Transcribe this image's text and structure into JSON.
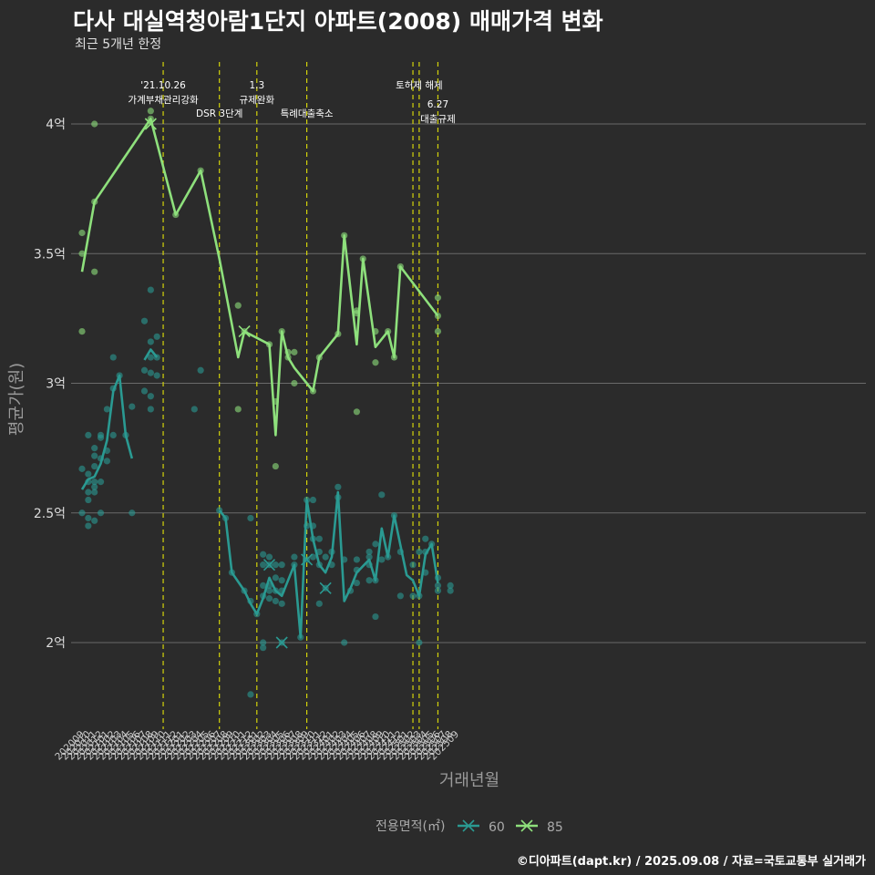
{
  "title": "다사 대실역청아람1단지 아파트(2008) 매매가격 변화",
  "subtitle": "최근 5개년 한정",
  "credit": "©디아파트(dapt.kr) / 2025.09.08 / 자료=국토교통부 실거래가",
  "colors": {
    "s60": "#2a9a92",
    "s85": "#8ee07c",
    "event": "#d4d40a",
    "grid": "#6a6a6a"
  },
  "chart_data": {
    "type": "line",
    "xlabel": "거래년월",
    "ylabel": "평균가(원)",
    "ylim": [
      1.68,
      4.22
    ],
    "yticks": [
      {
        "value": 2,
        "label": "2억"
      },
      {
        "value": 2.5,
        "label": "2.5억"
      },
      {
        "value": 3,
        "label": "3억"
      },
      {
        "value": 3.5,
        "label": "3.5억"
      },
      {
        "value": 4,
        "label": "4억"
      }
    ],
    "months": [
      "202009",
      "202010",
      "202011",
      "202012",
      "202101",
      "202102",
      "202103",
      "202104",
      "202105",
      "202106",
      "202107",
      "202108",
      "202109",
      "202110",
      "202111",
      "202112",
      "202201",
      "202202",
      "202203",
      "202204",
      "202205",
      "202206",
      "202207",
      "202208",
      "202209",
      "202210",
      "202211",
      "202212",
      "202301",
      "202302",
      "202303",
      "202304",
      "202305",
      "202306",
      "202307",
      "202308",
      "202309",
      "202310",
      "202311",
      "202312",
      "202401",
      "202402",
      "202403",
      "202404",
      "202405",
      "202406",
      "202407",
      "202408",
      "202409",
      "202410",
      "202411",
      "202412",
      "202501",
      "202502",
      "202503",
      "202504",
      "202505",
      "202506",
      "202507",
      "202508",
      "202509"
    ],
    "legend_title": "전용면적(㎡)",
    "series": [
      {
        "name": "60",
        "line": [
          [
            "202009",
            2.59
          ],
          [
            "202010",
            2.63
          ],
          [
            "202011",
            2.64
          ],
          [
            "202012",
            2.69
          ],
          [
            "202101",
            2.78
          ],
          [
            "202102",
            2.97
          ],
          [
            "202103",
            3.03
          ],
          [
            "202104",
            2.8
          ],
          [
            "202105",
            2.71
          ],
          null,
          [
            "202107",
            3.09
          ],
          [
            "202108",
            3.13
          ],
          [
            "202109",
            3.1
          ],
          null,
          [
            "202207",
            2.51
          ],
          [
            "202208",
            2.48
          ],
          [
            "202209",
            2.27
          ],
          [
            "202211",
            2.2
          ],
          [
            "202212",
            2.15
          ],
          [
            "202301",
            2.11
          ],
          [
            "202302",
            2.17
          ],
          [
            "202303",
            2.25
          ],
          [
            "202304",
            2.2
          ],
          [
            "202305",
            2.18
          ],
          [
            "202307",
            2.3
          ],
          [
            "202308",
            2.02
          ],
          [
            "202309",
            2.55
          ],
          [
            "202310",
            2.4
          ],
          [
            "202311",
            2.3
          ],
          [
            "202312",
            2.27
          ],
          [
            "202401",
            2.33
          ],
          [
            "202402",
            2.58
          ],
          [
            "202403",
            2.16
          ],
          [
            "202404",
            2.21
          ],
          [
            "202405",
            2.27
          ],
          [
            "202407",
            2.32
          ],
          [
            "202408",
            2.24
          ],
          [
            "202409",
            2.44
          ],
          [
            "202410",
            2.33
          ],
          [
            "202411",
            2.49
          ],
          [
            "202501",
            2.26
          ],
          [
            "202502",
            2.24
          ],
          [
            "202503",
            2.18
          ],
          [
            "202504",
            2.34
          ],
          [
            "202505",
            2.38
          ],
          [
            "202506",
            2.23
          ]
        ],
        "points": [
          [
            "202009",
            2.67
          ],
          [
            "202009",
            2.5
          ],
          [
            "202010",
            2.8
          ],
          [
            "202010",
            2.65
          ],
          [
            "202010",
            2.62
          ],
          [
            "202010",
            2.58
          ],
          [
            "202010",
            2.55
          ],
          [
            "202010",
            2.48
          ],
          [
            "202010",
            2.45
          ],
          [
            "202011",
            2.75
          ],
          [
            "202011",
            2.72
          ],
          [
            "202011",
            2.68
          ],
          [
            "202011",
            2.62
          ],
          [
            "202011",
            2.6
          ],
          [
            "202011",
            2.58
          ],
          [
            "202011",
            2.47
          ],
          [
            "202012",
            2.8
          ],
          [
            "202012",
            2.79
          ],
          [
            "202012",
            2.71
          ],
          [
            "202012",
            2.62
          ],
          [
            "202012",
            2.5
          ],
          [
            "202101",
            2.9
          ],
          [
            "202101",
            2.74
          ],
          [
            "202101",
            2.7
          ],
          [
            "202102",
            3.1
          ],
          [
            "202102",
            2.98
          ],
          [
            "202102",
            2.8
          ],
          [
            "202103",
            3.03
          ],
          [
            "202104",
            2.8
          ],
          [
            "202105",
            2.91
          ],
          [
            "202105",
            2.5
          ],
          [
            "202107",
            3.24
          ],
          [
            "202107",
            3.05
          ],
          [
            "202107",
            2.97
          ],
          [
            "202108",
            3.36
          ],
          [
            "202108",
            3.16
          ],
          [
            "202108",
            3.1
          ],
          [
            "202108",
            3.04
          ],
          [
            "202108",
            2.95
          ],
          [
            "202108",
            2.9
          ],
          [
            "202109",
            3.18
          ],
          [
            "202109",
            3.1
          ],
          [
            "202109",
            3.03
          ],
          [
            "202203",
            2.9
          ],
          [
            "202204",
            3.05
          ],
          [
            "202207",
            2.51
          ],
          [
            "202208",
            2.48
          ],
          [
            "202209",
            2.27
          ],
          [
            "202211",
            2.2
          ],
          [
            "202212",
            2.48
          ],
          [
            "202212",
            2.16
          ],
          [
            "202212",
            1.8
          ],
          [
            "202301",
            2.11
          ],
          [
            "202302",
            2.34
          ],
          [
            "202302",
            2.3
          ],
          [
            "202302",
            2.22
          ],
          [
            "202302",
            2.18
          ],
          [
            "202302",
            2.0
          ],
          [
            "202302",
            1.98
          ],
          [
            "202303",
            2.33
          ],
          [
            "202303",
            2.3
          ],
          [
            "202303",
            2.22
          ],
          [
            "202303",
            2.2
          ],
          [
            "202303",
            2.17
          ],
          [
            "202304",
            2.3
          ],
          [
            "202304",
            2.25
          ],
          [
            "202304",
            2.2
          ],
          [
            "202304",
            2.16
          ],
          [
            "202305",
            2.3
          ],
          [
            "202305",
            2.24
          ],
          [
            "202305",
            2.2
          ],
          [
            "202305",
            2.15
          ],
          [
            "202305",
            2.0
          ],
          [
            "202307",
            2.33
          ],
          [
            "202307",
            2.3
          ],
          [
            "202308",
            2.02
          ],
          [
            "202309",
            2.55
          ],
          [
            "202309",
            2.45
          ],
          [
            "202309",
            2.32
          ],
          [
            "202310",
            2.55
          ],
          [
            "202310",
            2.45
          ],
          [
            "202310",
            2.4
          ],
          [
            "202310",
            2.33
          ],
          [
            "202311",
            2.4
          ],
          [
            "202311",
            2.35
          ],
          [
            "202311",
            2.3
          ],
          [
            "202311",
            2.15
          ],
          [
            "202312",
            2.33
          ],
          [
            "202312",
            2.21
          ],
          [
            "202401",
            2.35
          ],
          [
            "202401",
            2.3
          ],
          [
            "202402",
            2.6
          ],
          [
            "202402",
            2.56
          ],
          [
            "202403",
            2.32
          ],
          [
            "202403",
            2.0
          ],
          [
            "202404",
            2.2
          ],
          [
            "202405",
            2.32
          ],
          [
            "202405",
            2.28
          ],
          [
            "202405",
            2.23
          ],
          [
            "202407",
            2.35
          ],
          [
            "202407",
            2.33
          ],
          [
            "202407",
            2.3
          ],
          [
            "202407",
            2.24
          ],
          [
            "202408",
            2.38
          ],
          [
            "202408",
            2.24
          ],
          [
            "202408",
            2.1
          ],
          [
            "202409",
            2.57
          ],
          [
            "202409",
            2.32
          ],
          [
            "202410",
            2.33
          ],
          [
            "202411",
            2.49
          ],
          [
            "202412",
            2.35
          ],
          [
            "202412",
            2.18
          ],
          [
            "202502",
            2.3
          ],
          [
            "202502",
            2.18
          ],
          [
            "202503",
            2.35
          ],
          [
            "202503",
            2.18
          ],
          [
            "202503",
            2.0
          ],
          [
            "202504",
            2.4
          ],
          [
            "202504",
            2.35
          ],
          [
            "202504",
            2.27
          ],
          [
            "202505",
            2.38
          ],
          [
            "202506",
            2.25
          ],
          [
            "202506",
            2.22
          ],
          [
            "202506",
            2.2
          ],
          [
            "202508",
            2.22
          ],
          [
            "202508",
            2.2
          ]
        ],
        "crosses": [
          [
            "202303",
            2.3
          ],
          [
            "202305",
            2.0
          ],
          [
            "202309",
            2.32
          ],
          [
            "202312",
            2.21
          ]
        ]
      },
      {
        "name": "85",
        "line": [
          [
            "202009",
            3.43
          ],
          [
            "202011",
            3.7
          ],
          [
            "202108",
            4.02
          ],
          [
            "202112",
            3.65
          ],
          [
            "202204",
            3.82
          ],
          [
            "202207",
            3.48
          ],
          [
            "202210",
            3.1
          ],
          [
            "202211",
            3.2
          ],
          [
            "202303",
            3.15
          ],
          [
            "202304",
            2.8
          ],
          [
            "202305",
            3.2
          ],
          [
            "202306",
            3.1
          ],
          [
            "202307",
            3.06
          ],
          [
            "202310",
            2.97
          ],
          [
            "202311",
            3.1
          ],
          [
            "202402",
            3.19
          ],
          [
            "202403",
            3.57
          ],
          [
            "202405",
            3.15
          ],
          [
            "202406",
            3.48
          ],
          [
            "202408",
            3.14
          ],
          [
            "202410",
            3.2
          ],
          [
            "202411",
            3.1
          ],
          [
            "202412",
            3.45
          ],
          [
            "202506",
            3.26
          ]
        ],
        "points": [
          [
            "202009",
            3.58
          ],
          [
            "202009",
            3.5
          ],
          [
            "202009",
            3.2
          ],
          [
            "202011",
            4.0
          ],
          [
            "202011",
            3.7
          ],
          [
            "202011",
            3.43
          ],
          [
            "202108",
            4.05
          ],
          [
            "202108",
            4.02
          ],
          [
            "202112",
            3.65
          ],
          [
            "202204",
            3.82
          ],
          [
            "202210",
            3.3
          ],
          [
            "202210",
            2.9
          ],
          [
            "202211",
            3.2
          ],
          [
            "202303",
            3.15
          ],
          [
            "202304",
            2.93
          ],
          [
            "202304",
            2.68
          ],
          [
            "202305",
            3.2
          ],
          [
            "202306",
            3.12
          ],
          [
            "202306",
            3.1
          ],
          [
            "202307",
            3.12
          ],
          [
            "202307",
            3.0
          ],
          [
            "202310",
            2.97
          ],
          [
            "202311",
            3.1
          ],
          [
            "202402",
            3.19
          ],
          [
            "202403",
            3.57
          ],
          [
            "202405",
            3.28
          ],
          [
            "202405",
            3.27
          ],
          [
            "202405",
            2.89
          ],
          [
            "202406",
            3.48
          ],
          [
            "202408",
            3.2
          ],
          [
            "202408",
            3.08
          ],
          [
            "202410",
            3.2
          ],
          [
            "202411",
            3.1
          ],
          [
            "202412",
            3.45
          ],
          [
            "202506",
            3.33
          ],
          [
            "202506",
            3.26
          ],
          [
            "202506",
            3.2
          ]
        ],
        "crosses": [
          [
            "202108",
            4.0
          ],
          [
            "202211",
            3.2
          ]
        ]
      }
    ],
    "events": [
      {
        "month": "202110",
        "lines": [
          "'21.10.26",
          "가계부채관리강화"
        ],
        "tier": 0
      },
      {
        "month": "202207",
        "lines": [
          "DSR 3단계"
        ],
        "tier": 1
      },
      {
        "month": "202301",
        "lines": [
          "1.3",
          "규제완화"
        ],
        "tier": 0
      },
      {
        "month": "202309",
        "lines": [
          "특례대출축소"
        ],
        "tier": 1
      },
      {
        "month": "202502",
        "lines": [],
        "tier": 0
      },
      {
        "month": "202503",
        "lines": [
          "토허제 해제"
        ],
        "tier": 0
      },
      {
        "month": "202506",
        "lines": [
          "6.27",
          "대출규제"
        ],
        "tier": 2
      }
    ]
  }
}
